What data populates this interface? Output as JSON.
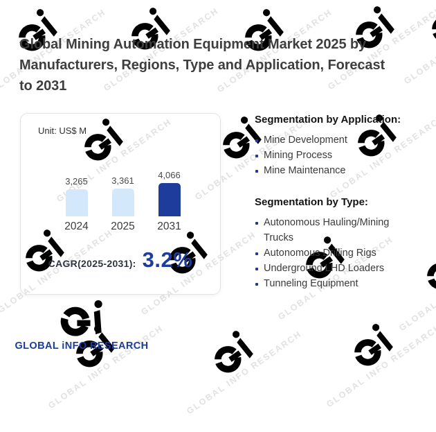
{
  "page": {
    "title": "Global Mining Automation Equipment Market 2025 by Manufacturers, Regions, Type and Application, Forecast to 2031",
    "title_lines": [
      "Global Mining Automation Equipment Market 2025 by",
      "Manufacturers, Regions, Type and Application, Forecast",
      "to 2031"
    ]
  },
  "chart_card": {
    "unit_label": "Unit: US$ M",
    "cagr_label": "CAGR(2025-2031):",
    "cagr_value": "3.2%"
  },
  "chart_data": {
    "type": "bar",
    "categories": [
      "2024",
      "2025",
      "2031"
    ],
    "values": [
      3265,
      3361,
      4066
    ],
    "value_labels": [
      "3,265",
      "3,361",
      "4,066"
    ],
    "unit": "US$ M",
    "ylim": [
      0,
      4066
    ],
    "bar_colors": [
      "#d4e8fb",
      "#d4e8fb",
      "#1e3c9c"
    ],
    "grid": false,
    "legend": false,
    "value_label_position": "above-bars"
  },
  "segmentation": {
    "application": {
      "heading": "Segmentation by Application:",
      "items": [
        "Mine Development",
        "Mining Process",
        "Mine Maintenance"
      ]
    },
    "type": {
      "heading": "Segmentation by Type:",
      "items": [
        "Autonomous Hauling/Mining Trucks",
        "Autonomous Drilling Rigs",
        "Underground LHD Loaders",
        "Tunneling Equipment"
      ]
    }
  },
  "logo": {
    "text": "GLOBAL iNFO RESEARCH"
  },
  "watermark": {
    "text": "GLOBAL INFO RESEARCH"
  },
  "colors": {
    "accent_blue": "#1e3c9c",
    "light_bar": "#d4e8fb",
    "logo_blue": "#1d3b98",
    "logo_green": "#8fbc27",
    "watermark_gray": "#e2e2e2",
    "title_text": "#3e3e3e"
  }
}
